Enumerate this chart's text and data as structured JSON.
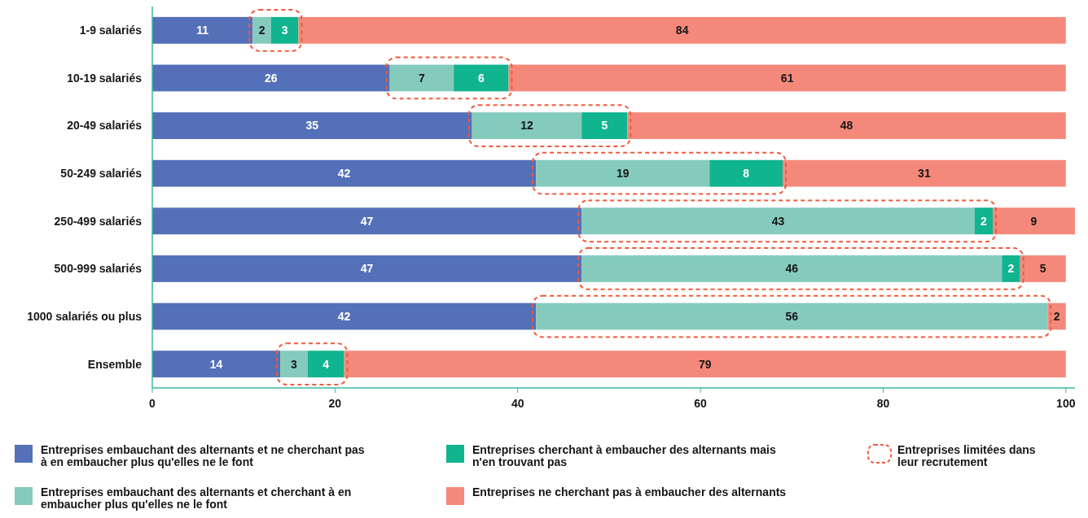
{
  "chart_data": {
    "type": "bar",
    "orientation": "horizontal",
    "stacked": true,
    "data_labels": true,
    "categories": [
      "1-9 salariés",
      "10-19 salariés",
      "20-49 salariés",
      "50-249 salariés",
      "250-499 salariés",
      "500-999 salariés",
      "1000 salariés ou plus",
      "Ensemble"
    ],
    "series": [
      {
        "name": "Entreprises embauchant des alternants et ne cherchant pas à en embaucher plus qu'elles ne le font",
        "color": "#5470b8",
        "values": [
          11,
          26,
          35,
          42,
          47,
          47,
          42,
          14
        ]
      },
      {
        "name": "Entreprises embauchant des alternants et cherchant à en embaucher plus qu'elles ne le font",
        "color": "#85cbbd",
        "values": [
          2,
          7,
          12,
          19,
          43,
          46,
          56,
          3
        ]
      },
      {
        "name": "Entreprises cherchant à embaucher des alternants mais n'en trouvant pas",
        "color": "#10b48f",
        "values": [
          3,
          6,
          5,
          8,
          2,
          2,
          null,
          4
        ]
      },
      {
        "name": "Entreprises ne cherchant pas à embaucher des alternants",
        "color": "#f4897b",
        "values": [
          84,
          61,
          48,
          31,
          9,
          5,
          2,
          79
        ]
      }
    ],
    "xlim": [
      0,
      101
    ],
    "xticks": [
      0,
      20,
      40,
      60,
      80,
      100
    ],
    "grid": false,
    "legend": "bottom",
    "annotations": [
      "Entreprises limitées dans leur recrutement"
    ]
  }
}
